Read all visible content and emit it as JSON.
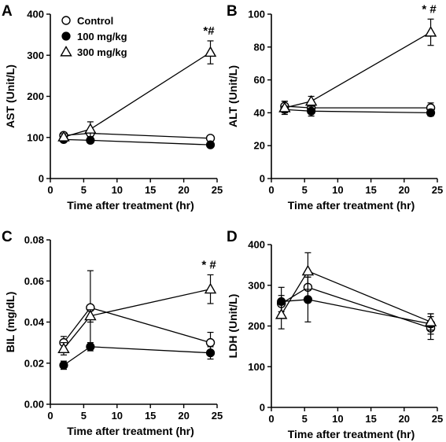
{
  "legend": {
    "entries": [
      {
        "label": "Control",
        "marker": "open-circle"
      },
      {
        "label": "100 mg/kg",
        "marker": "filled-circle"
      },
      {
        "label": "300 mg/kg",
        "marker": "open-triangle"
      }
    ],
    "placement": "inside panel A, top-left"
  },
  "chart_data": [
    {
      "type": "line",
      "panel": "A",
      "xlabel": "Time after treatment (hr)",
      "ylabel": "AST (Unit/L)",
      "xlim": [
        0,
        25
      ],
      "ylim": [
        0,
        400
      ],
      "xticks": [
        0,
        5,
        10,
        15,
        20,
        25
      ],
      "yticks": [
        0,
        100,
        200,
        300,
        400
      ],
      "x": [
        2,
        6,
        24
      ],
      "series": [
        {
          "name": "Control",
          "marker": "open-circle",
          "values": [
            105,
            110,
            98
          ],
          "errors": [
            7,
            10,
            6
          ]
        },
        {
          "name": "100 mg/kg",
          "marker": "filled-circle",
          "values": [
            95,
            93,
            82
          ],
          "errors": [
            5,
            6,
            6
          ]
        },
        {
          "name": "300 mg/kg",
          "marker": "open-triangle",
          "values": [
            101,
            120,
            307
          ],
          "errors": [
            8,
            18,
            28
          ]
        }
      ],
      "annotations": [
        {
          "text": "*#",
          "x": 24
        }
      ]
    },
    {
      "type": "line",
      "panel": "B",
      "xlabel": "Time after treatment (hr)",
      "ylabel": "ALT (Unit/L)",
      "xlim": [
        0,
        25
      ],
      "ylim": [
        0,
        100
      ],
      "xticks": [
        0,
        5,
        10,
        15,
        20,
        25
      ],
      "yticks": [
        0,
        20,
        40,
        60,
        80,
        100
      ],
      "x": [
        2,
        6,
        24
      ],
      "series": [
        {
          "name": "Control",
          "marker": "open-circle",
          "values": [
            44,
            43,
            43
          ],
          "errors": [
            3,
            3,
            3
          ]
        },
        {
          "name": "100 mg/kg",
          "marker": "filled-circle",
          "values": [
            42,
            41,
            40
          ],
          "errors": [
            2,
            3,
            2
          ]
        },
        {
          "name": "300 mg/kg",
          "marker": "open-triangle",
          "values": [
            43,
            47,
            89
          ],
          "errors": [
            4,
            3,
            8
          ]
        }
      ],
      "annotations": [
        {
          "text": "* #",
          "x": 24
        }
      ]
    },
    {
      "type": "line",
      "panel": "C",
      "xlabel": "Time after treatment (hr)",
      "ylabel": "BIL (mg/dL)",
      "xlim": [
        0,
        25
      ],
      "ylim": [
        0,
        0.08
      ],
      "xticks": [
        0,
        5,
        10,
        15,
        20,
        25
      ],
      "yticks": [
        0.0,
        0.02,
        0.04,
        0.06,
        0.08
      ],
      "ytick_labels": [
        "0.00",
        "0.02",
        "0.04",
        "0.06",
        "0.08"
      ],
      "x": [
        2,
        6,
        24
      ],
      "series": [
        {
          "name": "Control",
          "marker": "open-circle",
          "values": [
            0.03,
            0.047,
            0.03
          ],
          "errors": [
            0.003,
            0.018,
            0.005
          ]
        },
        {
          "name": "100 mg/kg",
          "marker": "filled-circle",
          "values": [
            0.019,
            0.028,
            0.025
          ],
          "errors": [
            0.002,
            0.002,
            0.003
          ]
        },
        {
          "name": "300 mg/kg",
          "marker": "open-triangle",
          "values": [
            0.027,
            0.043,
            0.056
          ],
          "errors": [
            0.003,
            0.003,
            0.007
          ]
        }
      ],
      "annotations": [
        {
          "text": "* #",
          "x": 24
        }
      ]
    },
    {
      "type": "line",
      "panel": "D",
      "xlabel": "Time after treatment (hr)",
      "ylabel": "LDH (Unit/L)",
      "xlim": [
        0,
        25
      ],
      "ylim": [
        0,
        400
      ],
      "xticks": [
        0,
        5,
        10,
        15,
        20,
        25
      ],
      "yticks": [
        0,
        100,
        200,
        300,
        400
      ],
      "x": [
        1.5,
        5.5,
        24
      ],
      "series": [
        {
          "name": "Control",
          "marker": "open-circle",
          "values": [
            255,
            295,
            195
          ],
          "errors": [
            20,
            25,
            28
          ]
        },
        {
          "name": "100 mg/kg",
          "marker": "filled-circle",
          "values": [
            260,
            265,
            205
          ],
          "errors": [
            35,
            55,
            25
          ]
        },
        {
          "name": "300 mg/kg",
          "marker": "open-triangle",
          "values": [
            228,
            335,
            210
          ],
          "errors": [
            35,
            45,
            20
          ]
        }
      ],
      "annotations": []
    }
  ]
}
